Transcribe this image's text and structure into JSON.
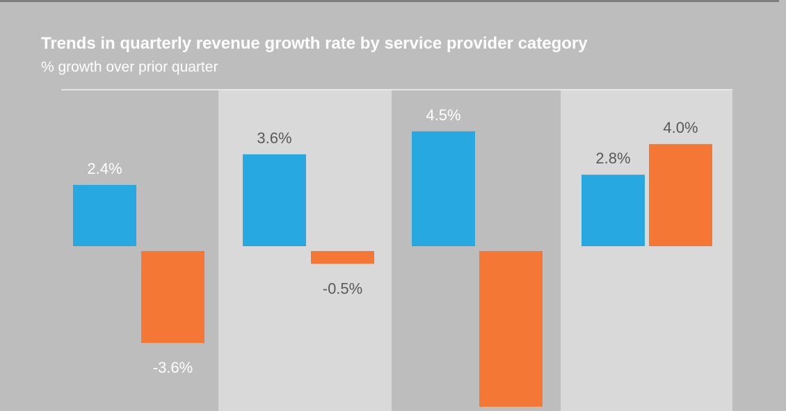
{
  "colors": {
    "frame_bg": "#bdbdbd",
    "band_dark": "#bdbdbd",
    "band_light": "#d9d9d9",
    "top_rule": "#7f7f7f",
    "panel_rule": "#e6e6e6",
    "series_blue": "#27a8e0",
    "series_orange": "#f47735",
    "label_on_dark": "#ffffff",
    "label_on_light": "#595959"
  },
  "chart_data": {
    "type": "bar",
    "title": "Trends in quarterly revenue growth rate by service provider category",
    "subtitle": "% growth over prior quarter",
    "categories": [
      "",
      "",
      "",
      ""
    ],
    "series": [
      {
        "color": "#27a8e0",
        "values": [
          2.4,
          3.6,
          4.5,
          2.8
        ],
        "labels": [
          "2.4%",
          "3.6%",
          "4.5%",
          "2.8%"
        ]
      },
      {
        "color": "#f47735",
        "values": [
          -3.6,
          -0.5,
          -6.1,
          4.0
        ],
        "labels": [
          "-3.6%",
          "-0.5%",
          "",
          "4.0%"
        ]
      }
    ],
    "grid": false,
    "legend": "none"
  }
}
